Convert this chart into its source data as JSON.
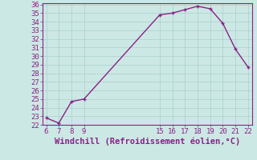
{
  "x": [
    6,
    7,
    8,
    9,
    15,
    16,
    17,
    18,
    19,
    20,
    21,
    22
  ],
  "y": [
    22.8,
    22.2,
    24.7,
    25.0,
    34.8,
    35.0,
    35.4,
    35.8,
    35.5,
    33.8,
    30.8,
    28.7
  ],
  "line_color": "#882288",
  "marker_color": "#882288",
  "bg_color": "#cce8e4",
  "grid_color": "#aacfcc",
  "xlabel": "Windchill (Refroidissement éolien,°C)",
  "xlabel_color": "#882288",
  "tick_color": "#882288",
  "spine_color": "#882288",
  "ylim": [
    22,
    36
  ],
  "xlim": [
    5.7,
    22.3
  ],
  "yticks": [
    22,
    23,
    24,
    25,
    26,
    27,
    28,
    29,
    30,
    31,
    32,
    33,
    34,
    35,
    36
  ],
  "xticks": [
    6,
    7,
    8,
    9,
    15,
    16,
    17,
    18,
    19,
    20,
    21,
    22
  ],
  "tick_fontsize": 6.5,
  "xlabel_fontsize": 7.5,
  "linewidth": 1.0,
  "markersize": 3.5
}
